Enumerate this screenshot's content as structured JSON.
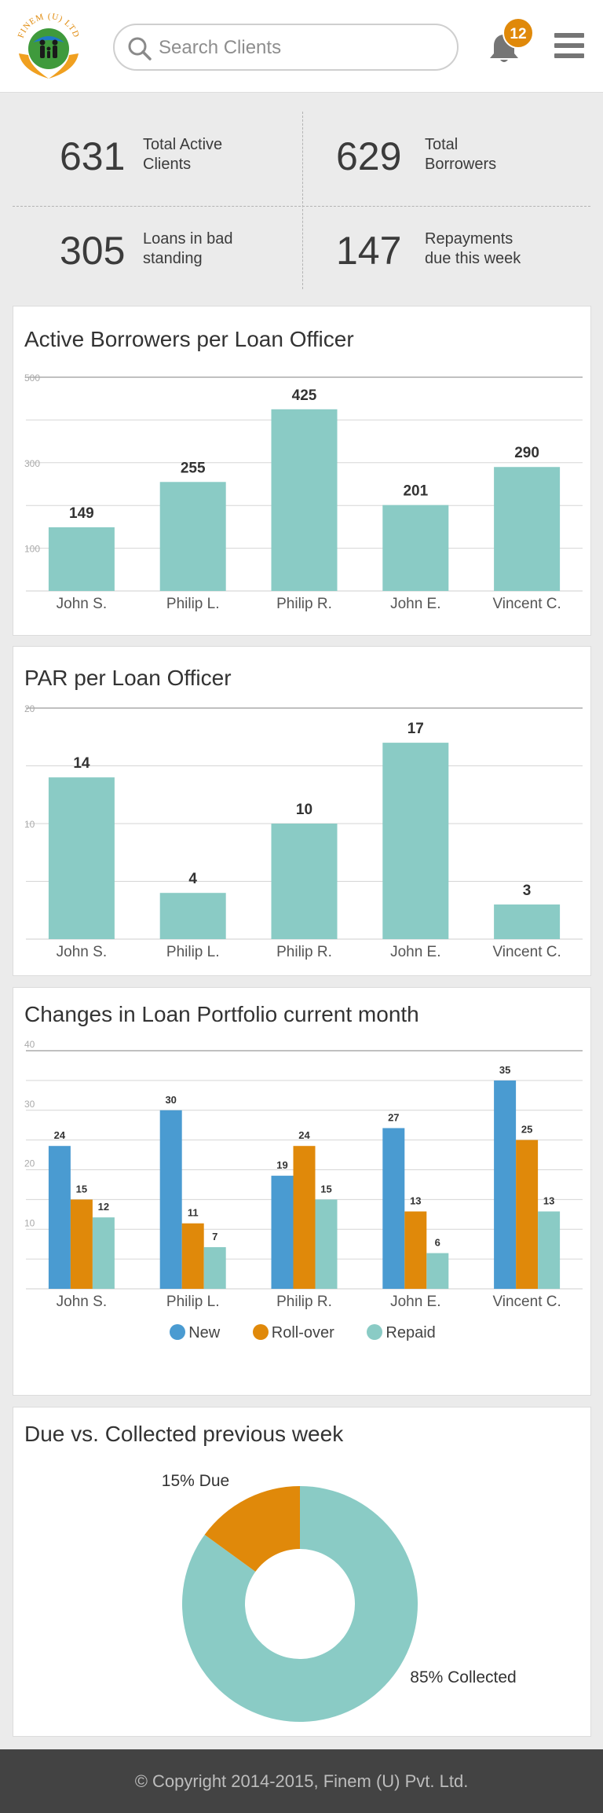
{
  "header": {
    "logo_text": "FINEM (U) LTD",
    "search_placeholder": "Search Clients",
    "notification_count": "12"
  },
  "icons": [
    "logo-icon",
    "search-icon",
    "bell-icon",
    "hamburger-menu-icon"
  ],
  "colors": {
    "teal": "#8acbc5",
    "blue": "#4a9bd1",
    "orange": "#e0890a",
    "footer_bg": "#434343"
  },
  "stats": [
    {
      "value": "631",
      "label": "Total Active Clients"
    },
    {
      "value": "629",
      "label": "Total Borrowers"
    },
    {
      "value": "305",
      "label": "Loans in bad standing"
    },
    {
      "value": "147",
      "label": "Repayments due this week"
    }
  ],
  "chart_data": [
    {
      "type": "bar",
      "title": "Active Borrowers per Loan Officer",
      "categories": [
        "John S.",
        "Philip L.",
        "Philip R.",
        "John E.",
        "Vincent C."
      ],
      "values": [
        149,
        255,
        425,
        201,
        290
      ],
      "ylim": [
        0,
        500
      ],
      "yticks": [
        100,
        300,
        500
      ],
      "grid": true
    },
    {
      "type": "bar",
      "title": "PAR per Loan Officer",
      "categories": [
        "John S.",
        "Philip L.",
        "Philip R.",
        "John E.",
        "Vincent C."
      ],
      "values": [
        14,
        4,
        10,
        17,
        3
      ],
      "ylim": [
        0,
        20
      ],
      "yticks": [
        10,
        20
      ],
      "grid": true
    },
    {
      "type": "bar",
      "title": "Changes in Loan Portfolio current month",
      "categories": [
        "John S.",
        "Philip L.",
        "Philip R.",
        "John E.",
        "Vincent C."
      ],
      "series": [
        {
          "name": "New",
          "color": "#4a9bd1",
          "values": [
            24,
            30,
            19,
            27,
            35
          ]
        },
        {
          "name": "Roll-over",
          "color": "#e0890a",
          "values": [
            15,
            11,
            24,
            13,
            25
          ]
        },
        {
          "name": "Repaid",
          "color": "#8acbc5",
          "values": [
            12,
            7,
            15,
            6,
            13
          ]
        }
      ],
      "ylim": [
        0,
        40
      ],
      "yticks": [
        10,
        20,
        30,
        40
      ],
      "legend": "bottom",
      "grid": true
    },
    {
      "type": "pie",
      "title": "Due vs. Collected previous week",
      "slices": [
        {
          "label": "15% Due",
          "value": 15,
          "color": "#e0890a"
        },
        {
          "label": "85% Collected",
          "value": 85,
          "color": "#8acbc5"
        }
      ],
      "donut": true
    }
  ],
  "footer": {
    "text": "© Copyright 2014-2015, Finem (U) Pvt. Ltd."
  }
}
